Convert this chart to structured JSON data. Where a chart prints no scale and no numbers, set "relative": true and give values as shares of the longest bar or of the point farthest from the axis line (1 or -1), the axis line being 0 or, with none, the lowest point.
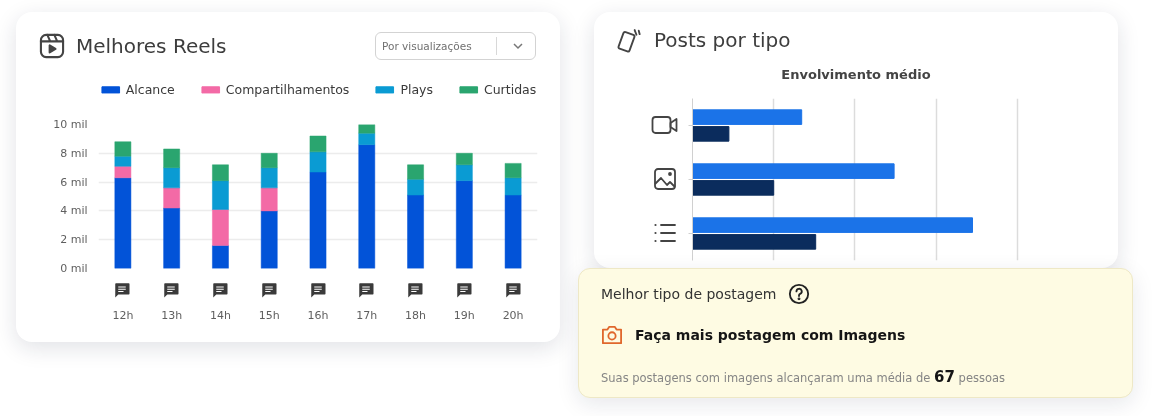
{
  "chart_data": [
    {
      "type": "bar",
      "stacked": true,
      "title": "Melhores Reels",
      "annotations": [
        "Por visualizações"
      ],
      "categories": [
        "12h",
        "13h",
        "14h",
        "15h",
        "16h",
        "17h",
        "18h",
        "19h",
        "20h"
      ],
      "series": [
        {
          "name": "Alcance",
          "color": "#0253d8",
          "values": [
            6.3,
            4.2,
            1.6,
            4.0,
            6.7,
            8.6,
            5.1,
            6.1,
            5.1
          ]
        },
        {
          "name": "Compartilhamentos",
          "color": "#f36aa6",
          "values": [
            0.8,
            1.4,
            2.5,
            1.6,
            null,
            null,
            null,
            null,
            null
          ]
        },
        {
          "name": "Plays",
          "color": "#0a9bd3",
          "values": [
            0.7,
            1.4,
            2.0,
            1.4,
            1.4,
            0.8,
            1.1,
            1.1,
            1.2
          ]
        },
        {
          "name": "Curtidas",
          "color": "#2aa56f",
          "values": [
            1.0,
            1.3,
            1.1,
            1.0,
            1.1,
            0.6,
            1.0,
            0.8,
            1.0
          ]
        }
      ],
      "ylim": [
        0,
        10
      ],
      "yticks": [
        {
          "value": 0,
          "label": "0 mil"
        },
        {
          "value": 2,
          "label": "2 mil"
        },
        {
          "value": 4,
          "label": "4 mil"
        },
        {
          "value": 6,
          "label": "6 mil"
        },
        {
          "value": 8,
          "label": "8 mil"
        },
        {
          "value": 10,
          "label": "10 mil"
        }
      ],
      "grid": "y",
      "legend": "top"
    },
    {
      "type": "bar",
      "orientation": "horizontal",
      "relative": true,
      "title": "Posts por tipo",
      "subtitle": "Envolvimento médio",
      "categories": [
        null,
        null,
        null
      ],
      "series": [
        {
          "color": "#1b73e8",
          "values": [
            0.39,
            0.72,
            1
          ]
        },
        {
          "color": "#0b2c5d",
          "values": [
            0.13,
            0.29,
            0.44
          ]
        }
      ],
      "grid": "x"
    },
    {
      "type": "other",
      "title": "Melhor tipo de postagem",
      "annotations": [
        "Faça mais postagem com Imagens",
        "Suas postagens com imagens alcançaram uma média de 67 pessoas"
      ]
    }
  ]
}
